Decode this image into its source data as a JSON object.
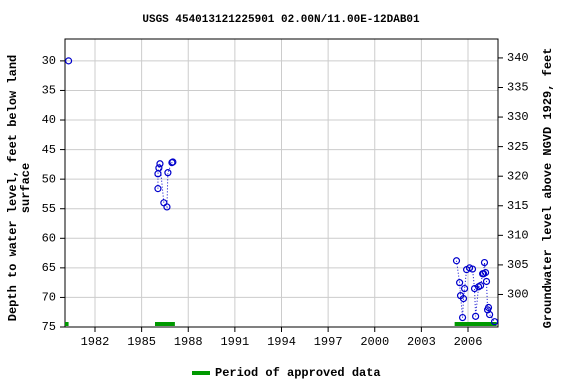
{
  "chart_data": {
    "type": "scatter",
    "title": "USGS 454013121225901 02.00N/11.00E-12DAB01",
    "y_label": [
      "Depth to water level, feet below land",
      "surface"
    ],
    "y2_label": "Groundwater level above NGVD 1929, feet",
    "xlim": [
      1980.07,
      2007.93
    ],
    "xticks": [
      1982,
      1985,
      1988,
      1991,
      1994,
      1997,
      2000,
      2003,
      2006
    ],
    "ylim": [
      75,
      26.3
    ],
    "yticks": [
      30,
      35,
      40,
      45,
      50,
      55,
      60,
      65,
      70,
      75
    ],
    "y2lim": [
      294.5,
      343.2
    ],
    "y2ticks": [
      300,
      305,
      310,
      315,
      320,
      325,
      330,
      335,
      340
    ],
    "grid": true,
    "series": [
      {
        "color": "#0000cc",
        "x": [
          1980.3,
          null,
          1986.05,
          1986.05,
          1986.11,
          1986.18,
          1986.43,
          1986.63,
          1986.69,
          1986.95,
          1987.01,
          null,
          2005.26,
          2005.46,
          2005.52,
          2005.65,
          2005.71,
          2005.78,
          2005.91,
          2006.1,
          2006.29,
          2006.42,
          2006.49,
          2006.68,
          2006.81,
          2006.94,
          2007.0,
          2007.06,
          2007.13,
          2007.19,
          2007.26,
          2007.32,
          2007.39,
          2007.71
        ],
        "values": [
          30,
          null,
          51.6,
          49.1,
          48.1,
          47.4,
          54.0,
          54.7,
          48.9,
          47.2,
          47.1,
          null,
          63.8,
          67.5,
          69.7,
          73.4,
          70.2,
          68.5,
          65.3,
          65.0,
          65.2,
          68.5,
          73.2,
          68.2,
          68.0,
          66.0,
          66.0,
          64.1,
          65.8,
          67.3,
          72.1,
          71.7,
          72.9,
          74.1
        ]
      }
    ],
    "approved_periods": {
      "name": "Period of approved data",
      "color": "#009900",
      "ranges": [
        [
          1980.07,
          1980.3
        ],
        [
          1985.86,
          1987.14
        ],
        [
          2005.14,
          2007.84
        ]
      ]
    }
  }
}
